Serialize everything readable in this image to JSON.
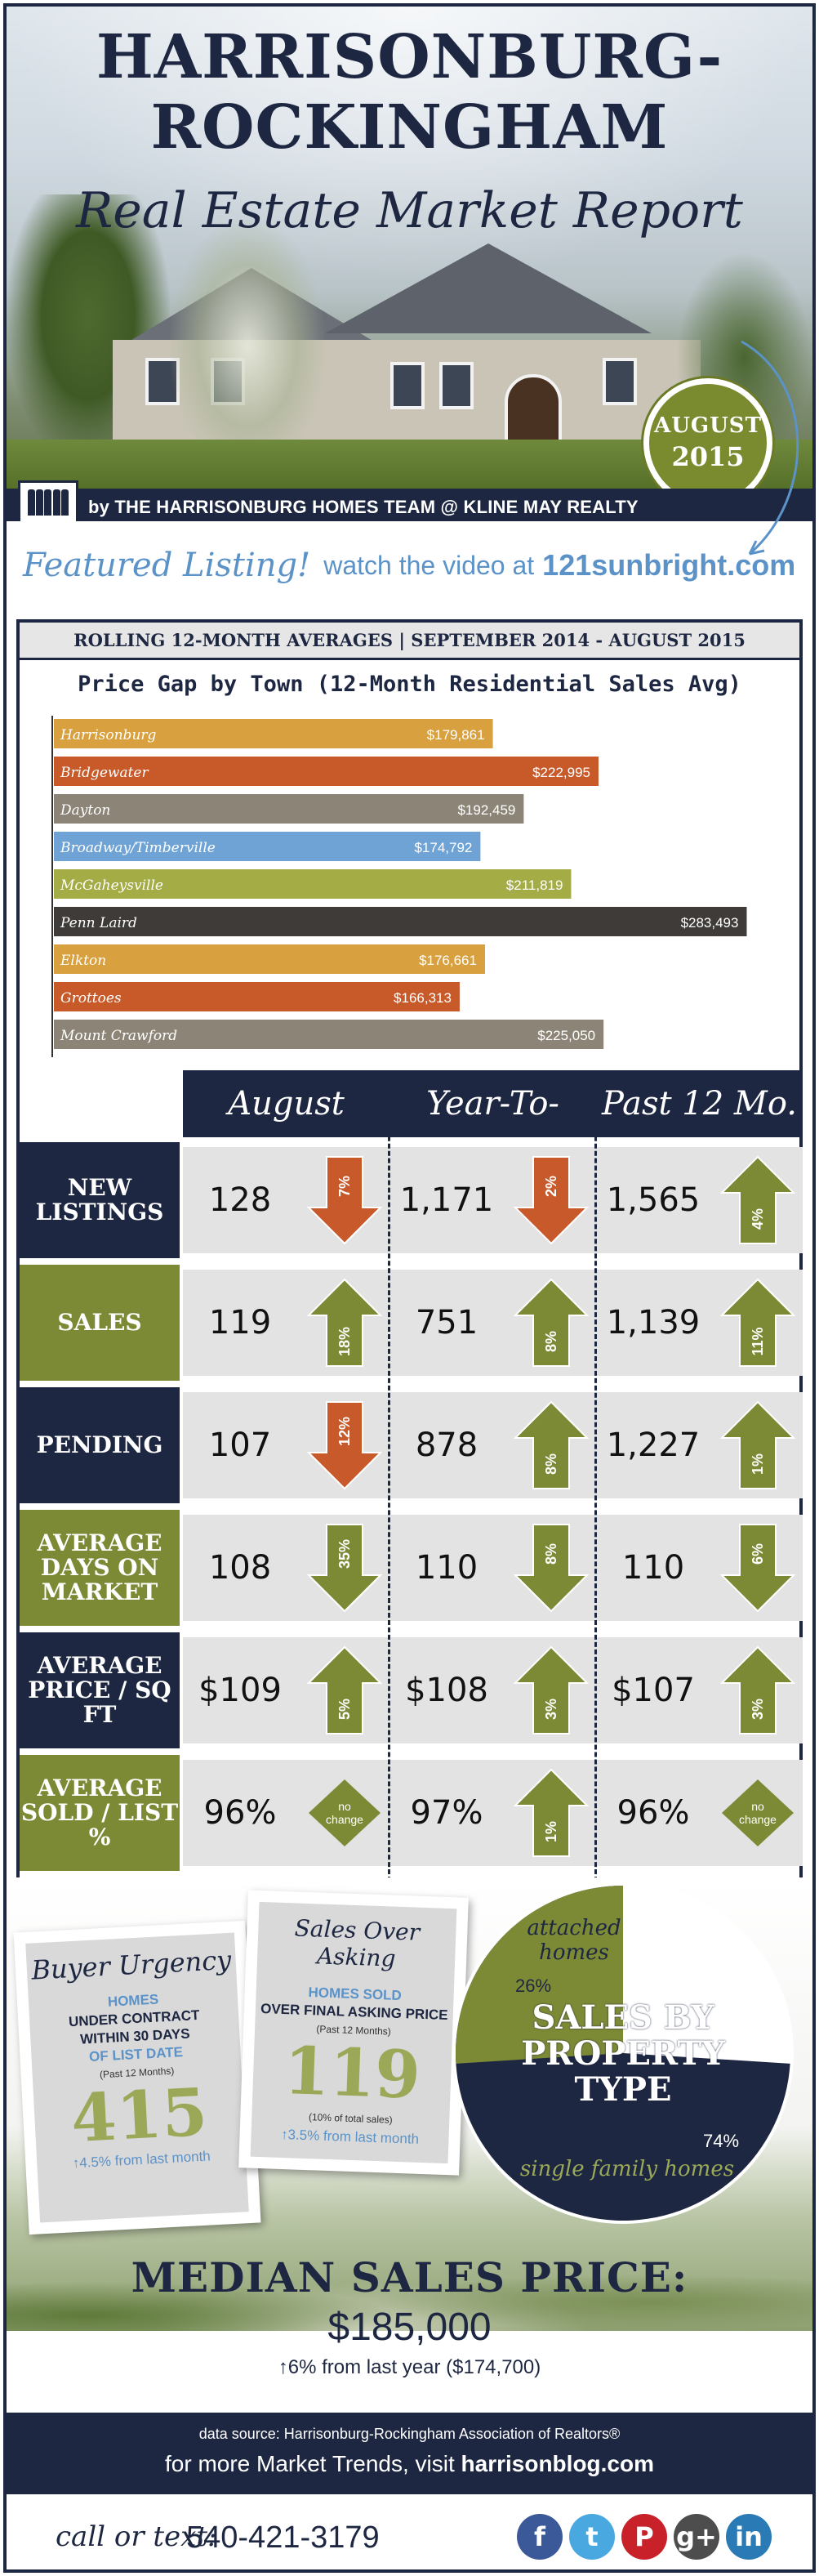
{
  "header": {
    "title_line1": "HARRISONBURG-",
    "title_line2": "ROCKINGHAM",
    "subtitle": "Real Estate Market Report",
    "badge_month": "AUGUST",
    "badge_year": "2015",
    "byline": "by THE HARRISONBURG HOMES TEAM @ KLINE MAY REALTY"
  },
  "featured": {
    "script": "Featured Listing!",
    "text": "watch the video at",
    "link": "121sunbright.com"
  },
  "rolling_title": "ROLLING 12-MONTH AVERAGES | SEPTEMBER 2014 - AUGUST 2015",
  "gap_title": "Price Gap by Town (12-Month Residential Sales Avg)",
  "chart_data": {
    "type": "bar",
    "orientation": "horizontal",
    "title": "Price Gap by Town (12-Month Residential Sales Avg)",
    "categories": [
      "Harrisonburg",
      "Bridgewater",
      "Dayton",
      "Broadway/Timberville",
      "McGaheysville",
      "Penn Laird",
      "Elkton",
      "Grottoes",
      "Mount Crawford"
    ],
    "values": [
      179861,
      222995,
      192459,
      174792,
      211819,
      283493,
      176661,
      166313,
      225050
    ],
    "value_labels": [
      "$179,861",
      "$222,995",
      "$192,459",
      "$174,792",
      "$211,819",
      "$283,493",
      "$176,661",
      "$166,313",
      "$225,050"
    ],
    "colors": [
      "#d8a03e",
      "#c85a2a",
      "#8c8577",
      "#6fa3d6",
      "#a3ac45",
      "#3e3b38",
      "#d8a03e",
      "#c85a2a",
      "#8c8577"
    ],
    "xlim": [
      0,
      300000
    ],
    "grid": false,
    "legend": "none"
  },
  "columns": [
    "August",
    "Year-To-Date",
    "Past 12 Mo."
  ],
  "rows": [
    {
      "label": "NEW LISTINGS",
      "color": "navy",
      "cells": [
        {
          "value": "128",
          "change": "7%",
          "dir": "down"
        },
        {
          "value": "1,171",
          "change": "2%",
          "dir": "down"
        },
        {
          "value": "1,565",
          "change": "4%",
          "dir": "up"
        }
      ]
    },
    {
      "label": "SALES",
      "color": "green",
      "cells": [
        {
          "value": "119",
          "change": "18%",
          "dir": "up"
        },
        {
          "value": "751",
          "change": "8%",
          "dir": "up"
        },
        {
          "value": "1,139",
          "change": "11%",
          "dir": "up"
        }
      ]
    },
    {
      "label": "PENDING",
      "color": "navy",
      "cells": [
        {
          "value": "107",
          "change": "12%",
          "dir": "down"
        },
        {
          "value": "878",
          "change": "8%",
          "dir": "up"
        },
        {
          "value": "1,227",
          "change": "1%",
          "dir": "up"
        }
      ]
    },
    {
      "label": "AVERAGE DAYS ON MARKET",
      "color": "green",
      "cells": [
        {
          "value": "108",
          "change": "35%",
          "dir": "down-good"
        },
        {
          "value": "110",
          "change": "8%",
          "dir": "down-good"
        },
        {
          "value": "110",
          "change": "6%",
          "dir": "down-good"
        }
      ]
    },
    {
      "label": "AVERAGE PRICE / SQ FT",
      "color": "navy",
      "cells": [
        {
          "value": "$109",
          "change": "5%",
          "dir": "up"
        },
        {
          "value": "$108",
          "change": "3%",
          "dir": "up"
        },
        {
          "value": "$107",
          "change": "3%",
          "dir": "up"
        }
      ]
    },
    {
      "label": "AVERAGE SOLD / LIST %",
      "color": "green",
      "cells": [
        {
          "value": "96%",
          "change": "no change",
          "dir": "none"
        },
        {
          "value": "97%",
          "change": "1%",
          "dir": "up"
        },
        {
          "value": "96%",
          "change": "no change",
          "dir": "none"
        }
      ]
    }
  ],
  "buyer_urgency": {
    "title": "Buyer Urgency",
    "line1": "HOMES",
    "line2": "UNDER CONTRACT",
    "line3": "WITHIN 30 DAYS",
    "line4": "OF LIST DATE",
    "period": "(Past 12 Months)",
    "value": "415",
    "delta_arrow": "↑4.5%",
    "delta_text": "from last month"
  },
  "over_asking": {
    "title": "Sales Over Asking",
    "line1": "HOMES SOLD",
    "line2": "OVER FINAL ASKING PRICE",
    "period": "(Past 12 Months)",
    "value": "119",
    "note": "(10% of total sales)",
    "delta_arrow": "↑3.5%",
    "delta_text": "from last month"
  },
  "property_type": {
    "title_line1": "SALES BY",
    "title_line2": "PROPERTY",
    "title_line3": "TYPE",
    "attached_label": "attached homes",
    "attached_pct": "26%",
    "single_label": "single family homes",
    "single_pct": "74%",
    "attached_value": 26,
    "single_value": 74,
    "colors": {
      "attached": "#7d8a35",
      "single": "#1e2742"
    }
  },
  "median": {
    "heading": "MEDIAN SALES PRICE:",
    "price": "$185,000",
    "sub": "↑6% from last year ($174,700)"
  },
  "footer": {
    "source": "data source: Harrisonburg-Rockingham Association of Realtors®",
    "visit_text": "for more Market Trends, visit",
    "visit_link": "harrisonblog.com"
  },
  "contact": {
    "script": "call or text:",
    "phone": "540-421-3179"
  },
  "social": [
    {
      "name": "facebook-icon",
      "glyph": "f",
      "color": "#3b5998"
    },
    {
      "name": "twitter-icon",
      "glyph": "t",
      "color": "#4aa8e0"
    },
    {
      "name": "pinterest-icon",
      "glyph": "P",
      "color": "#c9212a"
    },
    {
      "name": "googleplus-icon",
      "glyph": "g+",
      "color": "#4d4d4d"
    },
    {
      "name": "linkedin-icon",
      "glyph": "in",
      "color": "#2a7bb5"
    }
  ]
}
